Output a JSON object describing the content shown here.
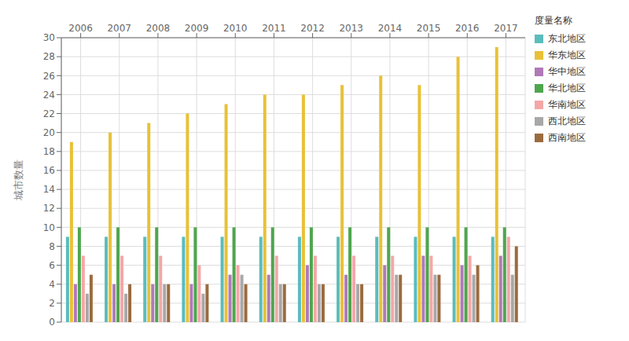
{
  "chart_data": {
    "type": "bar",
    "ylabel": "城市数量",
    "legend_title": "度量名称",
    "categories": [
      "2006",
      "2007",
      "2008",
      "2009",
      "2010",
      "2011",
      "2012",
      "2013",
      "2014",
      "2015",
      "2016",
      "2017"
    ],
    "series": [
      {
        "name": "东北地区",
        "color": "#5bbcbd",
        "values": [
          9,
          9,
          9,
          9,
          9,
          9,
          9,
          9,
          9,
          9,
          9,
          9
        ]
      },
      {
        "name": "华东地区",
        "color": "#e8c137",
        "values": [
          19,
          20,
          21,
          22,
          23,
          24,
          24,
          25,
          26,
          25,
          28,
          29
        ]
      },
      {
        "name": "华中地区",
        "color": "#b07ab8",
        "values": [
          4,
          4,
          4,
          4,
          5,
          5,
          6,
          5,
          6,
          7,
          6,
          7
        ]
      },
      {
        "name": "华北地区",
        "color": "#4ea64e",
        "values": [
          10,
          10,
          10,
          10,
          10,
          10,
          10,
          10,
          10,
          10,
          10,
          10
        ]
      },
      {
        "name": "华南地区",
        "color": "#f4a7a7",
        "values": [
          7,
          7,
          7,
          6,
          6,
          7,
          7,
          7,
          7,
          7,
          7,
          9
        ]
      },
      {
        "name": "西北地区",
        "color": "#a8a8a8",
        "values": [
          3,
          3,
          4,
          3,
          5,
          4,
          4,
          4,
          5,
          5,
          5,
          5
        ]
      },
      {
        "name": "西南地区",
        "color": "#9b6b3e",
        "values": [
          5,
          4,
          4,
          4,
          4,
          4,
          4,
          4,
          5,
          5,
          6,
          8
        ]
      }
    ],
    "ylim": [
      0,
      30
    ],
    "yticks": [
      0,
      2,
      4,
      6,
      8,
      10,
      12,
      14,
      16,
      18,
      20,
      22,
      24,
      26,
      28,
      30
    ],
    "grid": true,
    "legend": "right"
  }
}
